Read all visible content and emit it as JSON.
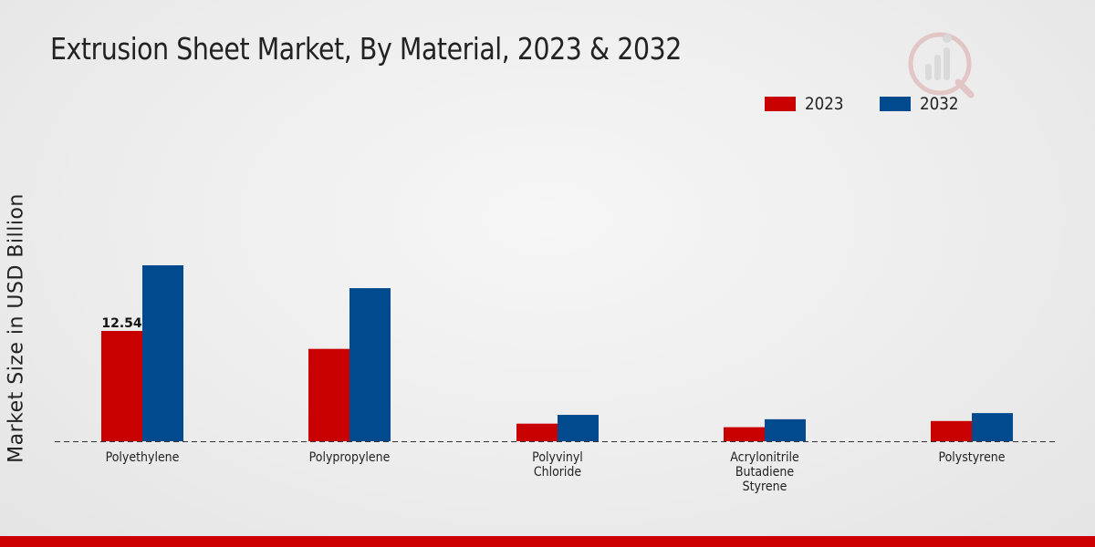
{
  "header": {
    "title": "Extrusion Sheet Market, By Material, 2023 & 2032"
  },
  "colors": {
    "series_2023": "#c80000",
    "series_2032": "#004a8d",
    "footer": "#cc0000"
  },
  "chart_data": {
    "type": "bar",
    "title": "Extrusion Sheet Market, By Material, 2023 & 2032",
    "xlabel": "",
    "ylabel": "Market Size in USD Billion",
    "categories": [
      [
        "Polyethylene"
      ],
      [
        "Polypropylene"
      ],
      [
        "Polyvinyl",
        "Chloride"
      ],
      [
        "Acrylonitrile",
        "Butadiene",
        "Styrene"
      ],
      [
        "Polystyrene"
      ]
    ],
    "series": [
      {
        "name": "2023",
        "values": [
          12.54,
          10.5,
          2.0,
          1.6,
          2.3
        ]
      },
      {
        "name": "2032",
        "values": [
          20.0,
          17.4,
          3.0,
          2.5,
          3.2
        ]
      }
    ],
    "data_labels": [
      {
        "series": 0,
        "index": 0,
        "text": "12.54"
      }
    ],
    "ylim": [
      0,
      30
    ],
    "grid": false,
    "baseline": "dashed",
    "legend": "top-right"
  }
}
